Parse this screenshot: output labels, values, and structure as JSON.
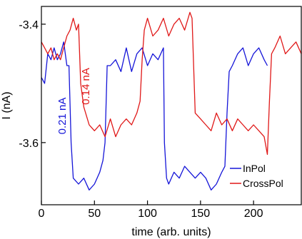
{
  "chart_data": {
    "type": "line",
    "xlabel": "time (arb. units)",
    "ylabel": "I (nA)",
    "xlim": [
      0,
      245
    ],
    "ylim": [
      -3.705,
      -3.37
    ],
    "xticks": [
      0,
      50,
      100,
      150,
      200
    ],
    "yticks": [
      -3.4,
      -3.6
    ],
    "legend_position": "bottom-right",
    "annotations": [
      {
        "text": "0.21 nA",
        "series": "InPol",
        "x": 23,
        "y": -3.555,
        "rotation": -90
      },
      {
        "text": "0.14 nA",
        "series": "CrossPol",
        "x": 45,
        "y": -3.505,
        "rotation": -90
      }
    ],
    "series": [
      {
        "name": "InPol",
        "color": "#1515d8",
        "x": [
          0,
          3,
          6,
          9,
          12,
          15,
          18,
          21,
          24,
          26,
          28,
          30,
          35,
          40,
          45,
          50,
          55,
          58,
          60,
          62,
          65,
          70,
          75,
          80,
          85,
          90,
          95,
          100,
          105,
          110,
          115,
          116,
          118,
          120,
          125,
          130,
          135,
          140,
          145,
          150,
          155,
          160,
          165,
          170,
          173,
          175,
          177,
          180,
          185,
          190,
          195,
          200,
          205,
          210,
          213
        ],
        "y": [
          -3.49,
          -3.5,
          -3.45,
          -3.46,
          -3.44,
          -3.46,
          -3.45,
          -3.43,
          -3.47,
          -3.47,
          -3.6,
          -3.66,
          -3.67,
          -3.66,
          -3.68,
          -3.67,
          -3.65,
          -3.63,
          -3.6,
          -3.47,
          -3.47,
          -3.46,
          -3.48,
          -3.44,
          -3.48,
          -3.45,
          -3.44,
          -3.47,
          -3.45,
          -3.46,
          -3.44,
          -3.6,
          -3.66,
          -3.67,
          -3.65,
          -3.66,
          -3.64,
          -3.65,
          -3.66,
          -3.65,
          -3.66,
          -3.68,
          -3.67,
          -3.65,
          -3.64,
          -3.55,
          -3.48,
          -3.47,
          -3.45,
          -3.44,
          -3.47,
          -3.45,
          -3.44,
          -3.46,
          -3.47
        ]
      },
      {
        "name": "CrossPol",
        "color": "#e01818",
        "x": [
          0,
          3,
          6,
          9,
          12,
          15,
          18,
          21,
          24,
          27,
          30,
          33,
          35,
          37,
          40,
          45,
          50,
          55,
          60,
          65,
          70,
          75,
          80,
          85,
          90,
          93,
          95,
          97,
          100,
          105,
          110,
          115,
          120,
          125,
          130,
          135,
          140,
          142,
          145,
          150,
          155,
          160,
          165,
          170,
          175,
          180,
          185,
          190,
          195,
          200,
          205,
          210,
          213,
          215,
          217,
          220,
          225,
          230,
          235,
          240,
          245
        ],
        "y": [
          -3.43,
          -3.44,
          -3.45,
          -3.44,
          -3.46,
          -3.45,
          -3.46,
          -3.44,
          -3.42,
          -3.41,
          -3.39,
          -3.41,
          -3.4,
          -3.5,
          -3.54,
          -3.57,
          -3.58,
          -3.57,
          -3.59,
          -3.56,
          -3.59,
          -3.57,
          -3.56,
          -3.57,
          -3.55,
          -3.53,
          -3.46,
          -3.41,
          -3.39,
          -3.42,
          -3.41,
          -3.39,
          -3.42,
          -3.4,
          -3.39,
          -3.41,
          -3.38,
          -3.39,
          -3.55,
          -3.56,
          -3.57,
          -3.58,
          -3.55,
          -3.57,
          -3.56,
          -3.58,
          -3.56,
          -3.57,
          -3.58,
          -3.57,
          -3.58,
          -3.59,
          -3.62,
          -3.53,
          -3.45,
          -3.44,
          -3.42,
          -3.45,
          -3.44,
          -3.43,
          -3.45
        ]
      }
    ]
  }
}
